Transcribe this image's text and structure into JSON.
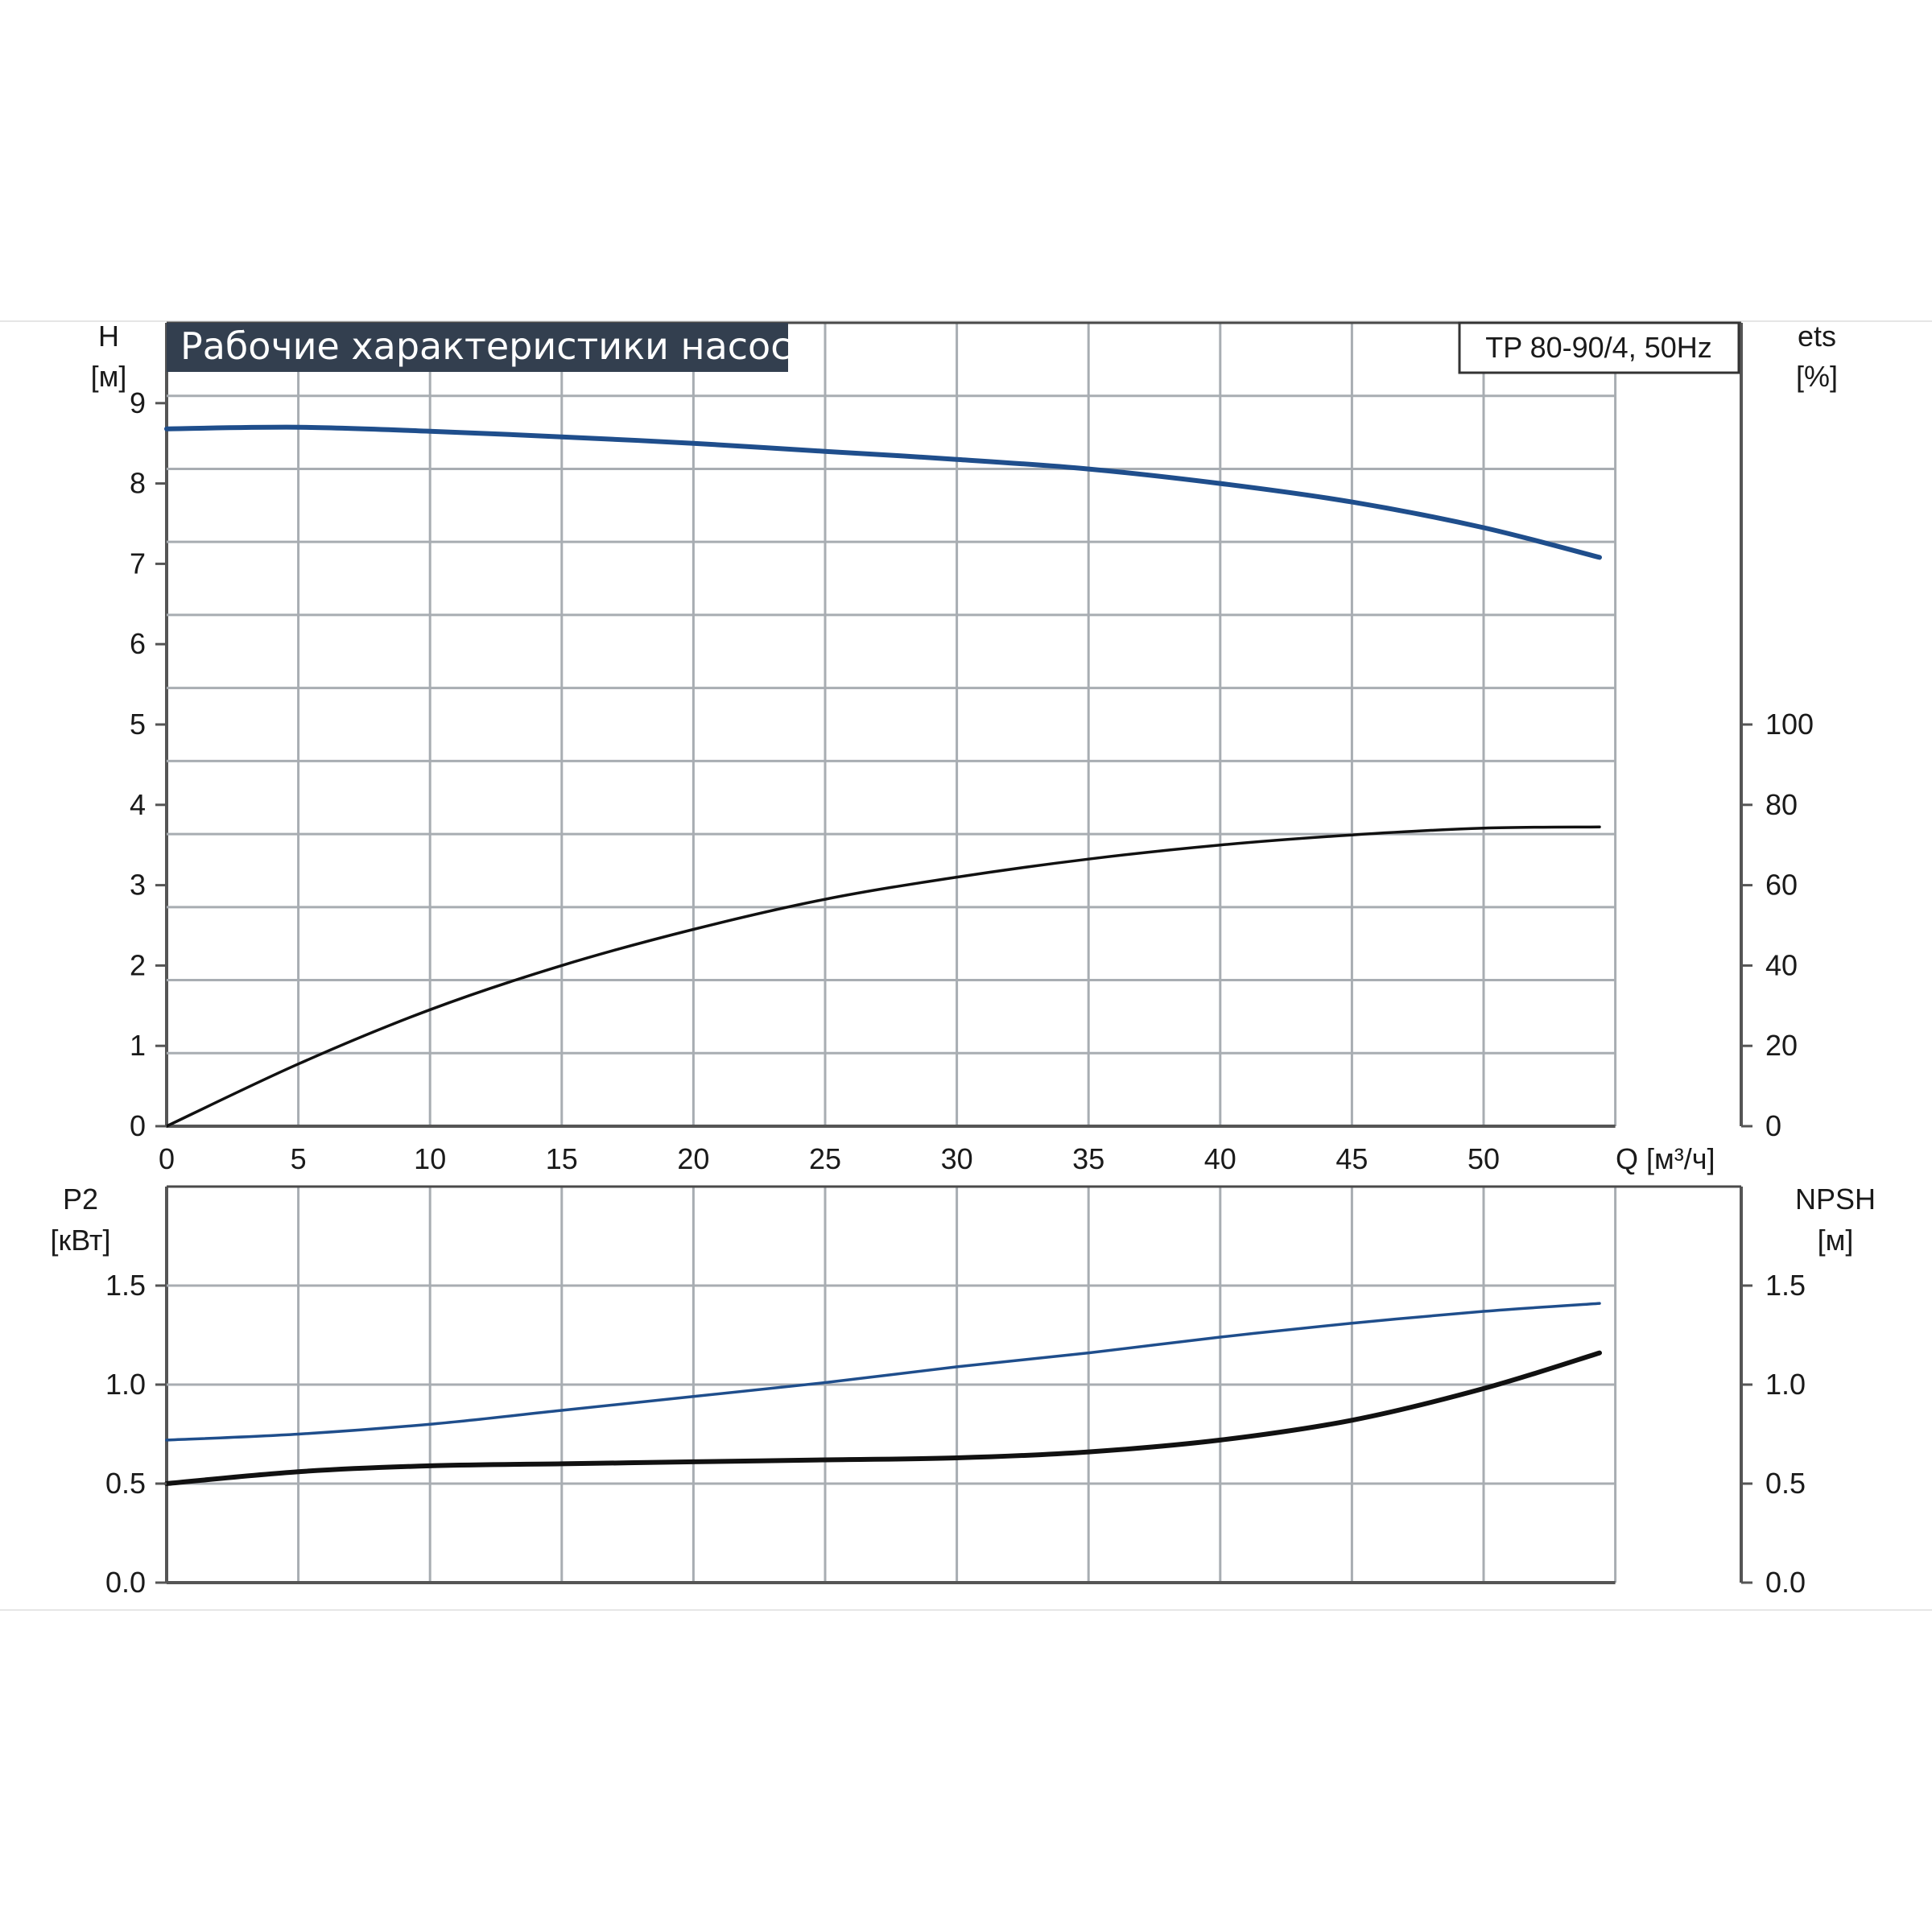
{
  "chart_data": [
    {
      "type": "line",
      "title": "Рабочие характеристики насоса",
      "model_label": "TP 80-90/4, 50Hz",
      "xlabel": "Q [м³/ч]",
      "xlim": [
        0,
        55
      ],
      "x_ticks": [
        "0",
        "5",
        "10",
        "15",
        "20",
        "25",
        "30",
        "35",
        "40",
        "45",
        "50"
      ],
      "y_left": {
        "label_top": "H",
        "label_unit": "[м]",
        "lim": [
          0,
          10
        ],
        "ticks": [
          "0",
          "1",
          "2",
          "3",
          "4",
          "5",
          "6",
          "7",
          "8",
          "9"
        ]
      },
      "y_right": {
        "label_top": "ets",
        "label_unit": "[%]",
        "lim": [
          0,
          200
        ],
        "ticks": [
          "0",
          "20",
          "40",
          "60",
          "80",
          "100"
        ]
      },
      "grid": true,
      "series": [
        {
          "axis": "left",
          "color": "#1f4e8c",
          "x": [
            0,
            5,
            10,
            15,
            20,
            25,
            30,
            35,
            40,
            45,
            50,
            54.4
          ],
          "y": [
            8.68,
            8.7,
            8.65,
            8.58,
            8.5,
            8.4,
            8.3,
            8.18,
            8.0,
            7.77,
            7.45,
            7.08
          ]
        },
        {
          "axis": "right",
          "color": "#111111",
          "x": [
            0,
            5,
            10,
            15,
            20,
            25,
            30,
            35,
            40,
            45,
            50,
            54.4
          ],
          "y": [
            0,
            15.5,
            29,
            40,
            49,
            56.5,
            62,
            66.5,
            70,
            72.5,
            74.2,
            74.5
          ]
        }
      ]
    },
    {
      "type": "line",
      "xlim": [
        0,
        55
      ],
      "y_left": {
        "label_top": "P2",
        "label_unit": "[кВт]",
        "lim": [
          0,
          2
        ],
        "ticks": [
          "0.0",
          "0.5",
          "1.0",
          "1.5"
        ]
      },
      "y_right": {
        "label_top": "NPSH",
        "label_unit": "[м]",
        "lim": [
          0,
          2
        ],
        "ticks": [
          "0.0",
          "0.5",
          "1.0",
          "1.5"
        ]
      },
      "grid": true,
      "series": [
        {
          "axis": "left",
          "color": "#1f4e8c",
          "x": [
            0,
            5,
            10,
            15,
            20,
            25,
            30,
            35,
            40,
            45,
            50,
            54.4
          ],
          "y": [
            0.72,
            0.75,
            0.8,
            0.87,
            0.94,
            1.01,
            1.09,
            1.16,
            1.24,
            1.31,
            1.37,
            1.41
          ]
        },
        {
          "axis": "right",
          "color": "#111111",
          "x": [
            0,
            5,
            10,
            15,
            20,
            25,
            30,
            35,
            40,
            45,
            50,
            54.4
          ],
          "y": [
            0.5,
            0.56,
            0.59,
            0.6,
            0.61,
            0.62,
            0.63,
            0.66,
            0.72,
            0.82,
            0.98,
            1.16
          ]
        }
      ]
    }
  ]
}
